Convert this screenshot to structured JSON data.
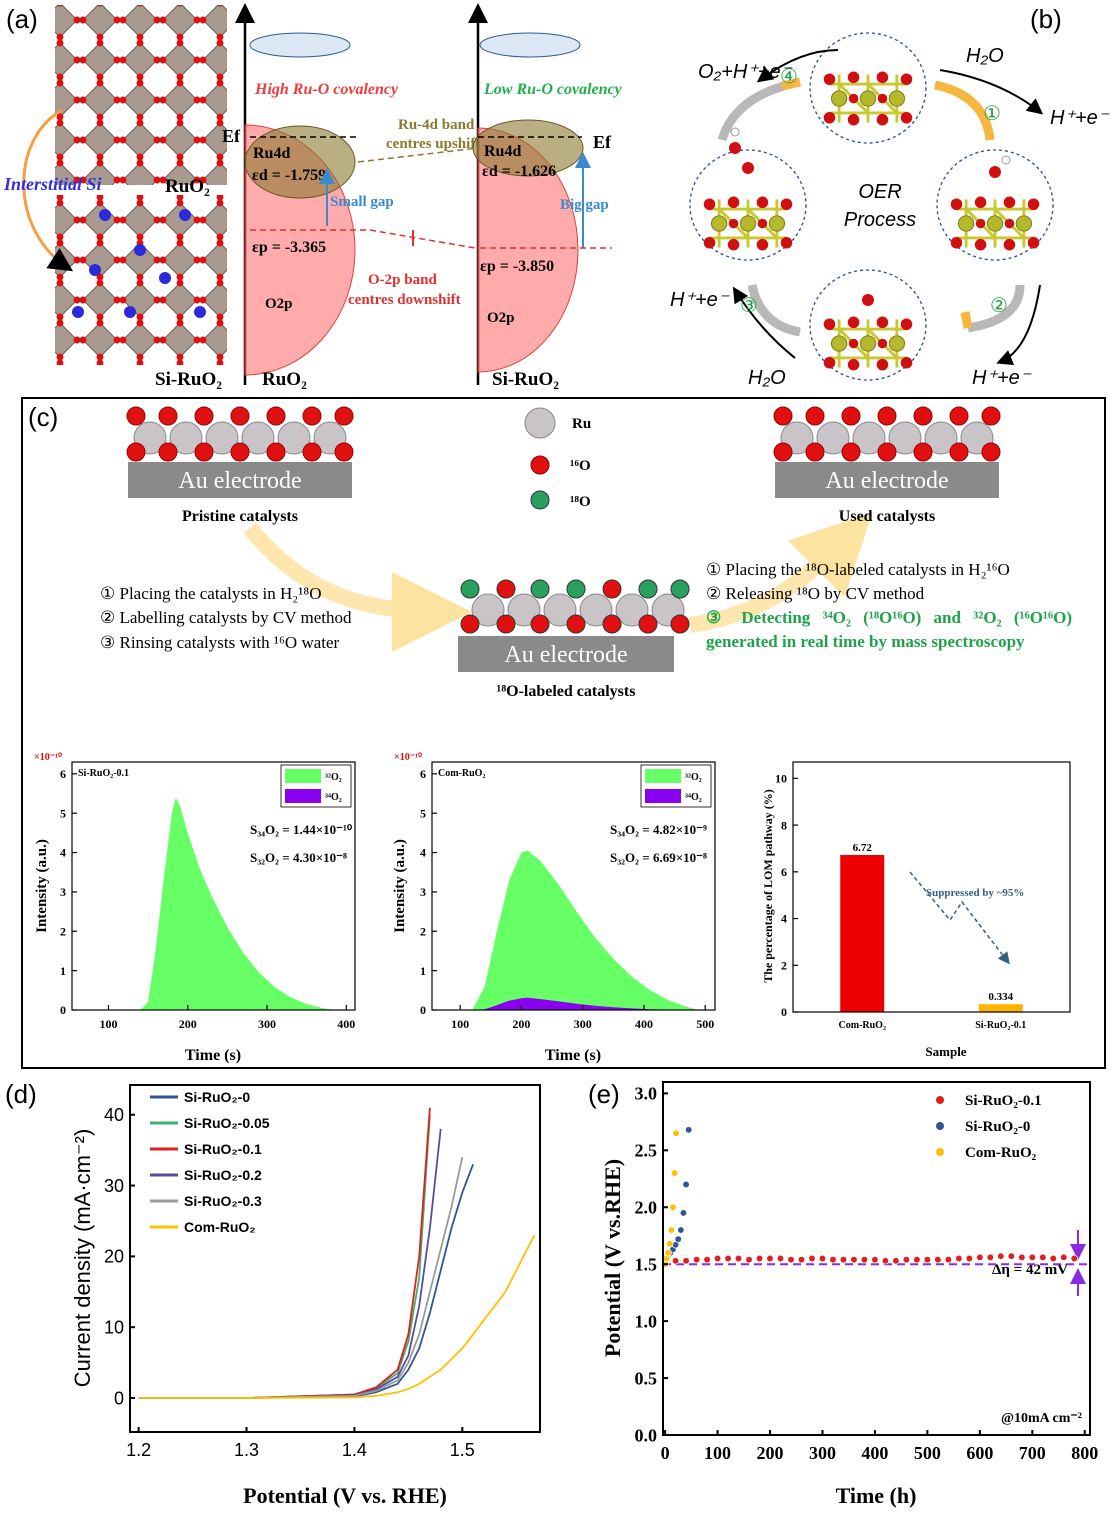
{
  "panel_a": {
    "label": "(a)",
    "interstitial": "Interstitial Si",
    "ruo2_struct": "RuO₂",
    "si_ruo2_struct": "Si-RuO₂",
    "ruo2_axis": "RuO₂",
    "si_ruo2_axis": "Si-RuO₂",
    "high": "High Ru-O covalency",
    "low": "Low Ru-O covalency",
    "ef_left": "Ef",
    "ef_right": "Ef",
    "ru4d_left": "Ru4d",
    "ru4d_right": "Ru4d",
    "ed_left": "εd = -1.759",
    "ed_right": "εd = -1.626",
    "small_gap": "Small gap",
    "big_gap": "Big gap",
    "ep_left": "εp = -3.365",
    "ep_right": "εp = -3.850",
    "o2p_left": "O2p",
    "o2p_right": "O2p",
    "upshift": [
      "Ru-4d band",
      "centres upshift"
    ],
    "downshift": [
      "O-2p band",
      "centres downshift"
    ]
  },
  "panel_b": {
    "label": "(b)",
    "steps": [
      "①",
      "②",
      "③",
      "④"
    ],
    "top_left": "O₂+H⁺+e⁻",
    "top_right_in": "H₂O",
    "top_right_out": "H⁺+e⁻",
    "bottom_right_out": "H⁺+e⁻",
    "bottom_left_in": "H₂O",
    "bottom_left_out": "H⁺+e⁻",
    "center": [
      "OER",
      "Process"
    ]
  },
  "panel_c": {
    "label": "(c)",
    "pristine": {
      "electrode": "Au electrode",
      "caption": "Pristine catalysts"
    },
    "labeled": {
      "electrode": "Au electrode",
      "caption": "¹⁸O-labeled catalysts"
    },
    "used": {
      "electrode": "Au electrode",
      "caption": "Used catalysts"
    },
    "legend": [
      "Ru",
      "¹⁶O",
      "¹⁸O"
    ],
    "steps_label": [
      "① Placing the catalysts in H₂¹⁸O",
      "② Labelling catalysts by CV method",
      "③ Rinsing catalysts with ¹⁶O water"
    ],
    "steps_release": [
      "① Placing the ¹⁸O-labeled catalysts in H₂¹⁶O",
      "② Releasing ¹⁸O by CV method",
      "③ Detecting ³⁴O₂ (¹⁸O¹⁶O) and ³²O₂ (¹⁶O¹⁶O) generated in real time by mass spectroscopy"
    ]
  },
  "panel_d": {
    "label": "(d)"
  },
  "panel_e": {
    "label": "(e)"
  },
  "chart_data": [
    {
      "type": "area",
      "title": "Si-RuO₂-0.1",
      "scale_label": "×10⁻¹⁰",
      "xlabel": "Time (s)",
      "ylabel": "Intensity (a.u.)",
      "xlim": [
        54,
        411
      ],
      "ylim": [
        0,
        6.3
      ],
      "xticks": [
        100,
        200,
        300,
        400
      ],
      "yticks": [
        0,
        1,
        2,
        3,
        4,
        5,
        6
      ],
      "x": [
        54,
        100,
        140,
        150,
        160,
        170,
        180,
        185,
        190,
        200,
        215,
        230,
        250,
        270,
        290,
        310,
        330,
        350,
        370,
        385,
        411
      ],
      "series": [
        {
          "name": "³²O₂",
          "color": "#66ff66",
          "values": [
            0,
            0,
            0,
            0.2,
            1.6,
            3.4,
            5.0,
            5.4,
            5.2,
            4.5,
            3.6,
            2.9,
            2.1,
            1.45,
            0.95,
            0.58,
            0.32,
            0.15,
            0.05,
            0,
            0
          ]
        },
        {
          "name": "³⁴O₂",
          "color": "#8a00f0",
          "values": [
            0,
            0,
            0,
            0,
            0.003,
            0.004,
            0.005,
            0.005,
            0.005,
            0.004,
            0.003,
            0.002,
            0.002,
            0.001,
            0.001,
            0,
            0,
            0,
            0,
            0,
            0
          ]
        }
      ],
      "annotations": [
        "S₃₄O₂ = 1.44×10⁻¹⁰",
        "S₃₂O₂ = 4.30×10⁻⁸"
      ]
    },
    {
      "type": "area",
      "title": "Com-RuO₂",
      "scale_label": "×10⁻¹⁰",
      "xlabel": "Time (s)",
      "ylabel": "Intensity (a.u.)",
      "xlim": [
        54,
        516
      ],
      "ylim": [
        0,
        6.3
      ],
      "xticks": [
        100,
        200,
        300,
        400,
        500
      ],
      "yticks": [
        0,
        1,
        2,
        3,
        4,
        5,
        6
      ],
      "x": [
        54,
        100,
        120,
        140,
        160,
        180,
        200,
        210,
        230,
        260,
        290,
        320,
        350,
        380,
        410,
        440,
        470,
        490,
        516
      ],
      "series": [
        {
          "name": "³²O₂",
          "color": "#66ff66",
          "values": [
            0,
            0,
            0,
            0.6,
            2.0,
            3.3,
            4.0,
            4.05,
            3.8,
            3.2,
            2.5,
            1.85,
            1.3,
            0.85,
            0.5,
            0.25,
            0.08,
            0,
            0
          ]
        },
        {
          "name": "³⁴O₂",
          "color": "#8a00f0",
          "values": [
            0,
            0,
            0,
            0.02,
            0.12,
            0.24,
            0.3,
            0.31,
            0.28,
            0.22,
            0.16,
            0.11,
            0.07,
            0.04,
            0.02,
            0.01,
            0,
            0,
            0
          ]
        }
      ],
      "annotations": [
        "S₃₄O₂ = 4.82×10⁻⁹",
        "S₃₂O₂ = 6.69×10⁻⁸"
      ]
    },
    {
      "type": "bar",
      "xlabel": "Sample",
      "ylabel": "The percentage of LOM pathway (%)",
      "categories": [
        "Com-RuO₂",
        "Si-RuO₂-0.1"
      ],
      "values": [
        6.72,
        0.334
      ],
      "colors": [
        "#ee0000",
        "#ffb300"
      ],
      "ylim": [
        0,
        10.7
      ],
      "yticks": [
        0,
        2,
        4,
        6,
        8,
        10
      ],
      "annotations": [
        "Suppressed by ~95%"
      ]
    },
    {
      "type": "line",
      "xlabel": "Potential (V vs. RHE)",
      "ylabel": "Current density (mA·cm⁻²)",
      "xlim": [
        1.192,
        1.572
      ],
      "ylim": [
        -4.8,
        44.2
      ],
      "xticks": [
        1.2,
        1.3,
        1.4,
        1.5
      ],
      "yticks": [
        0,
        10,
        20,
        30,
        40
      ],
      "x": [
        1.2,
        1.3,
        1.4,
        1.42,
        1.44,
        1.45,
        1.46,
        1.47,
        1.48,
        1.49,
        1.5,
        1.51,
        1.52,
        1.53,
        1.54,
        1.55,
        1.56,
        1.567
      ],
      "series": [
        {
          "name": "Si-RuO₂-0",
          "color": "#2f5597",
          "values": [
            0,
            0,
            0.2,
            0.8,
            2,
            4,
            7,
            12,
            18,
            24,
            29,
            33,
            null,
            null,
            null,
            null,
            null,
            null
          ]
        },
        {
          "name": "Si-RuO₂-0.05",
          "color": "#3cb371",
          "values": [
            0,
            0,
            0.5,
            1.4,
            3.5,
            8,
            17,
            40,
            null,
            null,
            null,
            null,
            null,
            null,
            null,
            null,
            null,
            null
          ]
        },
        {
          "name": "Si-RuO₂-0.1",
          "color": "#e02020",
          "values": [
            0,
            0,
            0.5,
            1.5,
            4,
            9,
            20,
            41,
            null,
            null,
            null,
            null,
            null,
            null,
            null,
            null,
            null,
            null
          ]
        },
        {
          "name": "Si-RuO₂-0.2",
          "color": "#5b4b9b",
          "values": [
            0,
            0,
            0.4,
            1.2,
            3,
            6,
            13,
            24,
            38,
            null,
            null,
            null,
            null,
            null,
            null,
            null,
            null,
            null
          ]
        },
        {
          "name": "Si-RuO₂-0.3",
          "color": "#9a9a9a",
          "values": [
            0,
            0,
            0.3,
            1,
            2.5,
            5,
            9,
            15,
            21,
            27,
            34,
            null,
            null,
            null,
            null,
            null,
            null,
            null
          ]
        },
        {
          "name": "Com-RuO₂",
          "color": "#ffc000",
          "values": [
            0,
            0,
            0.1,
            0.3,
            0.8,
            1.3,
            2,
            3,
            4,
            5.5,
            7,
            9,
            11,
            13,
            15,
            18,
            21,
            23
          ]
        }
      ]
    },
    {
      "type": "scatter",
      "xlabel": "Time (h)",
      "ylabel": "Potential (V vs.RHE)",
      "xlim": [
        -4,
        810
      ],
      "ylim": [
        0,
        3.1
      ],
      "xticks": [
        0,
        100,
        200,
        300,
        400,
        500,
        600,
        700,
        800
      ],
      "yticks": [
        {
          "value": 0,
          "label": "0.0"
        },
        0.5,
        {
          "value": 1,
          "label": "1.0"
        },
        1.5,
        {
          "value": 2,
          "label": "2.0"
        },
        2.5,
        {
          "value": 3,
          "label": "3.0"
        }
      ],
      "reference_y": 1.5,
      "reference_color": "#8a2be2",
      "annotations": [
        "Δη = 42 mV",
        "@10mA cm⁻²"
      ],
      "series": [
        {
          "name": "Si-RuO₂-0.1",
          "color": "#e02020",
          "x": [
            0,
            20,
            40,
            60,
            80,
            100,
            120,
            140,
            160,
            180,
            200,
            220,
            240,
            260,
            280,
            300,
            320,
            340,
            360,
            380,
            400,
            420,
            440,
            460,
            480,
            500,
            520,
            540,
            560,
            580,
            600,
            620,
            640,
            660,
            680,
            700,
            720,
            740,
            760,
            780
          ],
          "values": [
            1.52,
            1.53,
            1.53,
            1.54,
            1.54,
            1.55,
            1.55,
            1.55,
            1.54,
            1.55,
            1.55,
            1.55,
            1.54,
            1.54,
            1.55,
            1.55,
            1.54,
            1.54,
            1.54,
            1.54,
            1.54,
            1.53,
            1.53,
            1.54,
            1.54,
            1.54,
            1.54,
            1.54,
            1.55,
            1.55,
            1.56,
            1.56,
            1.57,
            1.57,
            1.56,
            1.56,
            1.56,
            1.55,
            1.56,
            1.55
          ]
        },
        {
          "name": "Si-RuO₂-0",
          "color": "#2f5597",
          "x": [
            0,
            5,
            10,
            15,
            20,
            25,
            30,
            35,
            40,
            45
          ],
          "values": [
            1.55,
            1.57,
            1.6,
            1.63,
            1.67,
            1.72,
            1.8,
            1.95,
            2.2,
            2.68
          ]
        },
        {
          "name": "Com-RuO₂",
          "color": "#ffc000",
          "x": [
            0,
            3,
            6,
            9,
            12,
            15,
            18,
            21
          ],
          "values": [
            1.5,
            1.55,
            1.6,
            1.68,
            1.8,
            2.0,
            2.3,
            2.65
          ]
        }
      ]
    }
  ]
}
